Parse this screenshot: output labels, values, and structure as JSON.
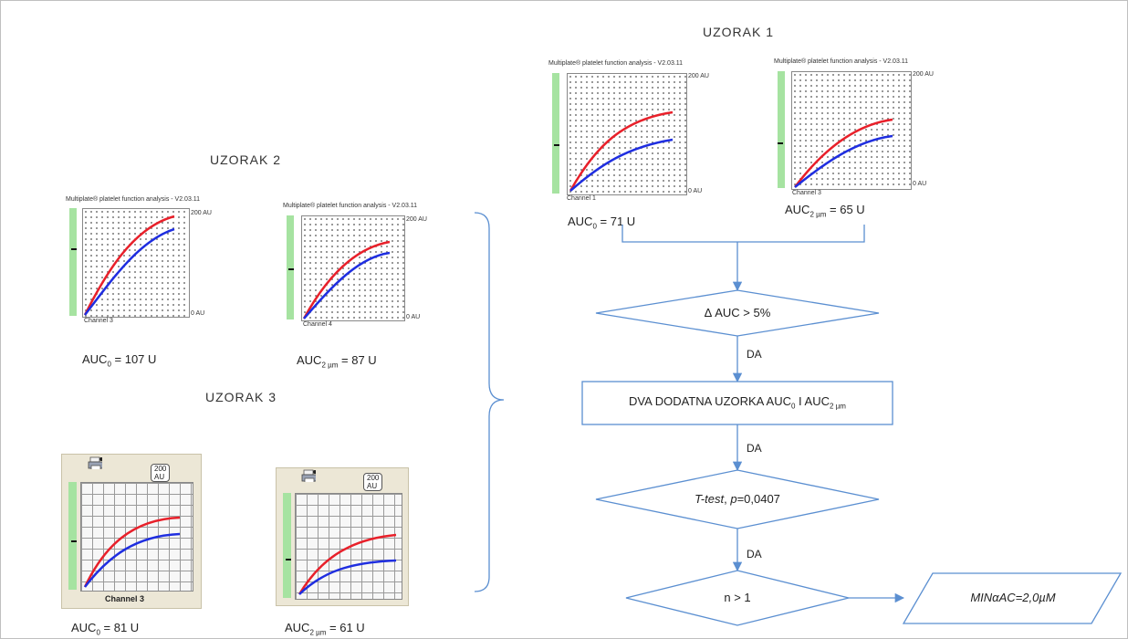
{
  "labels": {
    "uzorak1": "UZORAK 1",
    "uzorak2": "UZORAK 2",
    "uzorak3": "UZORAK 3"
  },
  "panel_common": {
    "title": "Multiplate® platelet function analysis - V2.03.11",
    "top_label": "200 AU",
    "bottom_label": "0 AU",
    "display_label": "200 AU"
  },
  "panels": {
    "u1_left": {
      "channel": "Channel 1",
      "auc_main": "AUC",
      "auc_sub": "0",
      "auc_value": " = 71 U"
    },
    "u1_right": {
      "channel": "Channel 3",
      "auc_main": "AUC",
      "auc_sub": "2 µm",
      "auc_value": " = 65 U"
    },
    "u2_left": {
      "channel": "Channel 3",
      "auc_main": "AUC",
      "auc_sub": "0",
      "auc_value": " = 107 U"
    },
    "u2_right": {
      "channel": "Channel 4",
      "auc_main": "AUC",
      "auc_sub": "2 µm",
      "auc_value": " = 87 U"
    },
    "u3_left": {
      "channel": "Channel 3",
      "auc_main": "AUC",
      "auc_sub": "0",
      "auc_value": " = 81 U"
    },
    "u3_right": {
      "channel": "",
      "auc_main": "AUC",
      "auc_sub": "2 µm",
      "auc_value": " = 61 U"
    }
  },
  "flowchart": {
    "decision1": "Δ AUC > 5%",
    "process_main": "DVA DODATNA UZORKA AUC",
    "process_sub1": "0",
    "process_mid": "  I AUC",
    "process_sub2": "2 µm",
    "decision2_italic": "T-test",
    "decision2_rest": ", ",
    "decision2_p": "p",
    "decision2_val": "=0,0407",
    "decision3": "n > 1",
    "output": "MINαAC=2,0µM",
    "yes1": "DA",
    "yes2": "DA",
    "yes3": "DA"
  },
  "colors": {
    "red_curve": "#e8202a",
    "blue_curve": "#1f2ee0",
    "arrow": "#5b8fd1",
    "green_bar": "#a6e3a1",
    "beige_panel": "#ece7d6"
  }
}
